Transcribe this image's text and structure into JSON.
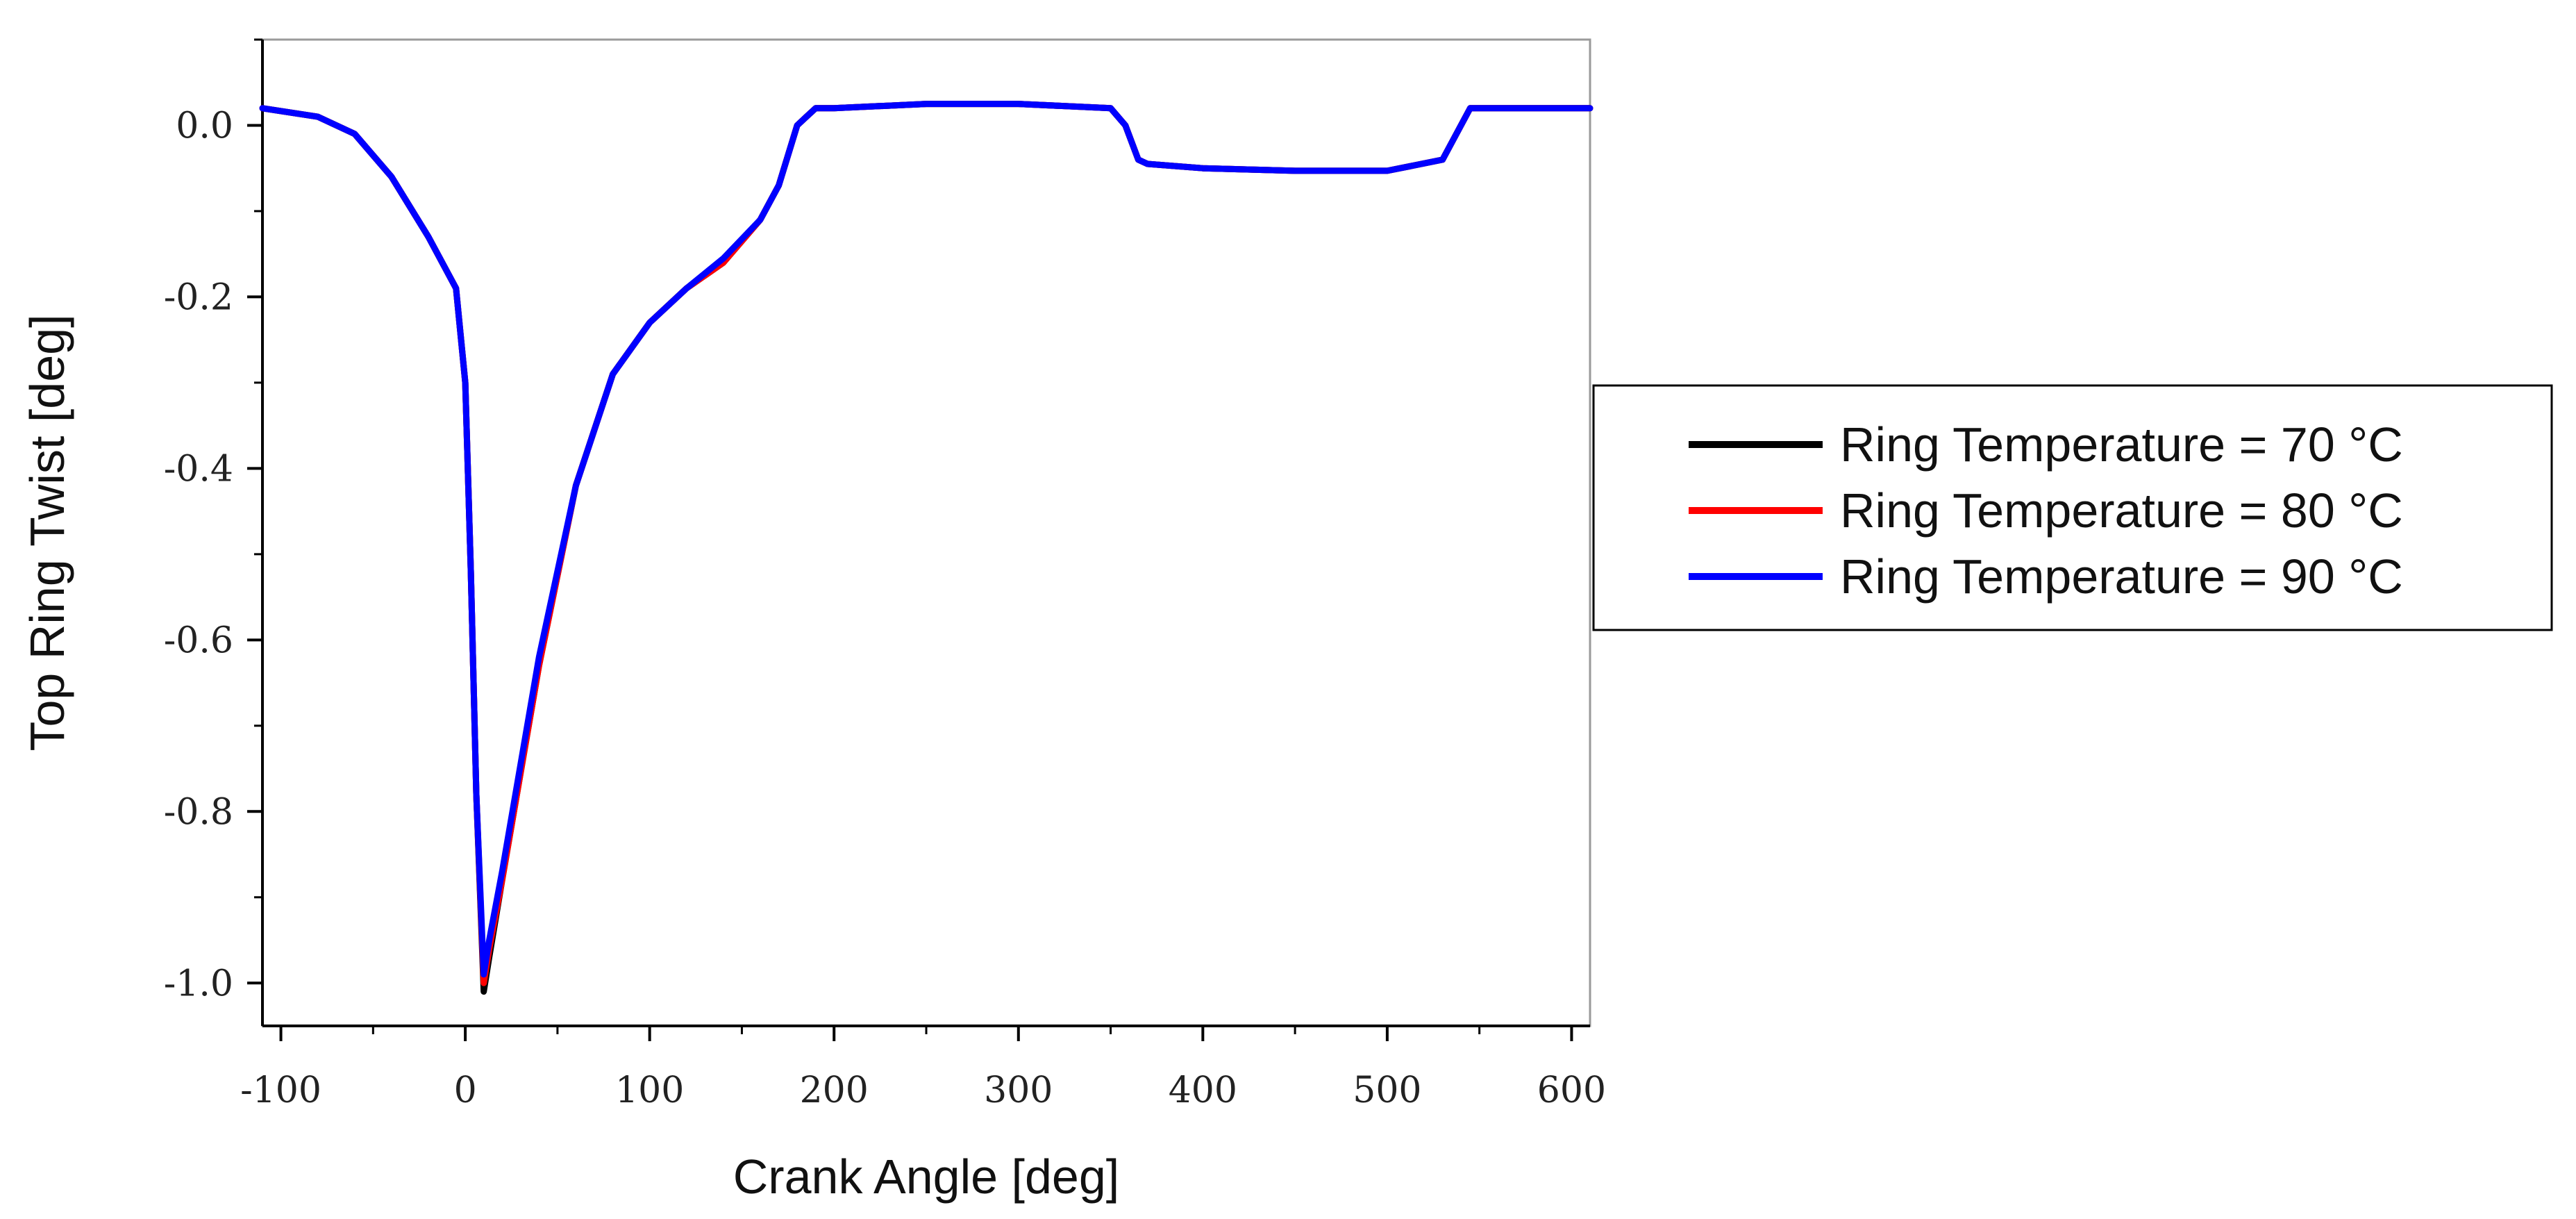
{
  "chart_data": {
    "type": "line",
    "xlabel": "Crank Angle [deg]",
    "ylabel": "Top Ring Twist [deg]",
    "xlim": [
      -110,
      610
    ],
    "ylim": [
      -1.05,
      0.1
    ],
    "x_ticks": [
      -100,
      0,
      100,
      200,
      300,
      400,
      500,
      600
    ],
    "x_tick_labels": [
      "-100",
      "0",
      "100",
      "200",
      "300",
      "400",
      "500",
      "600"
    ],
    "y_ticks": [
      0.0,
      -0.2,
      -0.4,
      -0.6,
      -0.8,
      -1.0
    ],
    "y_tick_labels": [
      "0.0",
      "-0.2",
      "-0.4",
      "-0.6",
      "-0.8",
      "-1.0"
    ],
    "grid": false,
    "legend_position": "right",
    "series": [
      {
        "name": "Ring Temperature = 70 °C",
        "color": "#000000",
        "x": [
          -110,
          -80,
          -60,
          -40,
          -20,
          -5,
          0,
          3,
          6,
          10,
          13,
          20,
          40,
          60,
          80,
          100,
          120,
          140,
          160,
          170,
          180,
          185,
          190,
          200,
          250,
          300,
          350,
          358,
          365,
          370,
          400,
          450,
          500,
          530,
          540,
          545,
          550,
          600,
          610
        ],
        "y": [
          0.02,
          0.01,
          -0.01,
          -0.06,
          -0.13,
          -0.19,
          -0.3,
          -0.52,
          -0.78,
          -1.01,
          -0.97,
          -0.88,
          -0.63,
          -0.42,
          -0.29,
          -0.23,
          -0.19,
          -0.16,
          -0.11,
          -0.07,
          0.0,
          0.01,
          0.02,
          0.02,
          0.025,
          0.025,
          0.02,
          0.0,
          -0.04,
          -0.045,
          -0.05,
          -0.053,
          -0.053,
          -0.04,
          0.0,
          0.02,
          0.02,
          0.02,
          0.02
        ]
      },
      {
        "name": "Ring Temperature = 80 °C",
        "color": "#ff0000",
        "x": [
          -110,
          -80,
          -60,
          -40,
          -20,
          -5,
          0,
          3,
          6,
          10,
          13,
          20,
          40,
          60,
          80,
          100,
          120,
          140,
          160,
          170,
          180,
          185,
          190,
          200,
          250,
          300,
          350,
          358,
          365,
          370,
          400,
          450,
          500,
          530,
          540,
          545,
          550,
          600,
          610
        ],
        "y": [
          0.02,
          0.01,
          -0.01,
          -0.06,
          -0.13,
          -0.19,
          -0.3,
          -0.52,
          -0.78,
          -1.0,
          -0.96,
          -0.88,
          -0.63,
          -0.42,
          -0.29,
          -0.23,
          -0.19,
          -0.16,
          -0.11,
          -0.07,
          0.0,
          0.01,
          0.02,
          0.02,
          0.025,
          0.025,
          0.02,
          0.0,
          -0.04,
          -0.045,
          -0.05,
          -0.053,
          -0.053,
          -0.04,
          0.0,
          0.02,
          0.02,
          0.02,
          0.02
        ]
      },
      {
        "name": "Ring Temperature = 90 °C",
        "color": "#0000ff",
        "x": [
          -110,
          -80,
          -60,
          -40,
          -20,
          -5,
          0,
          3,
          6,
          10,
          13,
          20,
          40,
          60,
          80,
          100,
          120,
          140,
          160,
          170,
          180,
          185,
          190,
          200,
          250,
          300,
          350,
          358,
          365,
          370,
          400,
          450,
          500,
          530,
          540,
          545,
          550,
          600,
          610
        ],
        "y": [
          0.02,
          0.01,
          -0.01,
          -0.06,
          -0.13,
          -0.19,
          -0.3,
          -0.52,
          -0.78,
          -0.99,
          -0.95,
          -0.87,
          -0.62,
          -0.42,
          -0.29,
          -0.23,
          -0.19,
          -0.155,
          -0.11,
          -0.07,
          0.0,
          0.01,
          0.02,
          0.02,
          0.025,
          0.025,
          0.02,
          0.0,
          -0.04,
          -0.045,
          -0.05,
          -0.053,
          -0.053,
          -0.04,
          0.0,
          0.02,
          0.02,
          0.02,
          0.02
        ]
      }
    ]
  }
}
